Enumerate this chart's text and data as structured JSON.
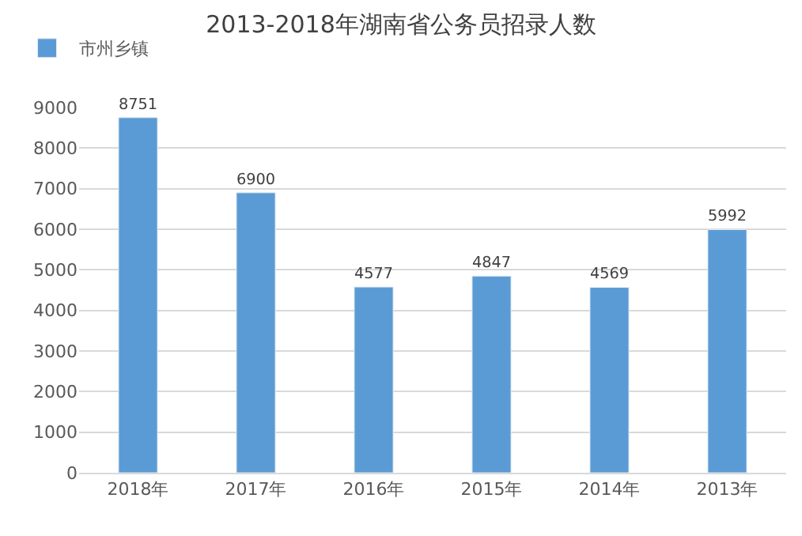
{
  "chart_data": {
    "type": "bar",
    "title": "2013-2018年湖南省公务员招录人数",
    "categories": [
      "2018年",
      "2017年",
      "2016年",
      "2015年",
      "2014年",
      "2013年"
    ],
    "series": [
      {
        "name": "市州乡镇",
        "color": "#5b9bd5",
        "values": [
          8751,
          6900,
          4577,
          4847,
          4569,
          5992
        ]
      }
    ],
    "ylim": [
      0,
      9000
    ],
    "yticks": [
      0,
      1000,
      2000,
      3000,
      4000,
      5000,
      6000,
      7000,
      8000,
      9000
    ],
    "grid": "y",
    "legend": "top left",
    "data_labels": true
  }
}
